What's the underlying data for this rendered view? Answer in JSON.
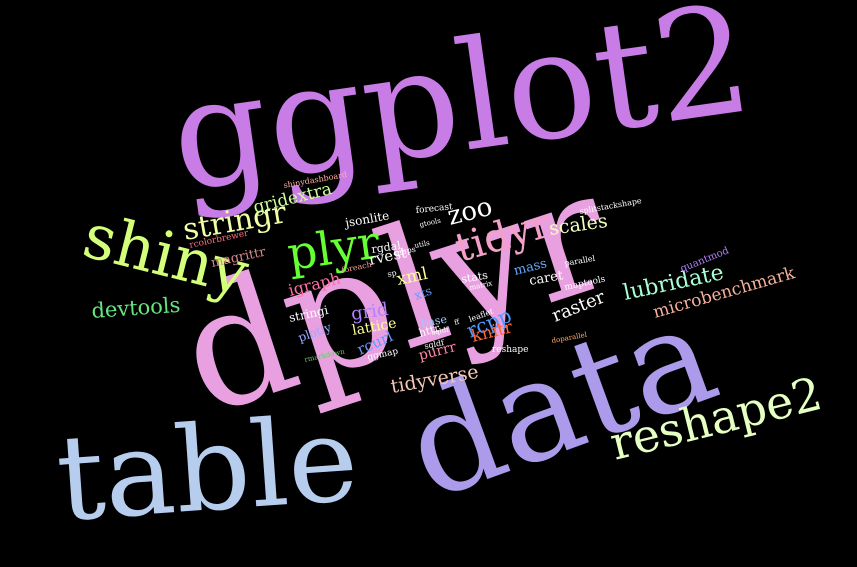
{
  "words": [
    {
      "text": "ggplot2",
      "color": "#c77ce6"
    },
    {
      "text": "dplyr",
      "color": "#e9a0e0"
    },
    {
      "text": "table",
      "color": "#b7cdee"
    },
    {
      "text": "data",
      "color": "#ab9bea"
    },
    {
      "text": "shiny",
      "color": "#d4ff7a"
    },
    {
      "text": "plyr",
      "color": "#66ff33"
    },
    {
      "text": "stringr",
      "color": "#f0ffa8"
    },
    {
      "text": "tidyr",
      "color": "#f2a0c8"
    },
    {
      "text": "reshape2",
      "color": "#e6ffc2"
    },
    {
      "text": "lubridate",
      "color": "#a8ffd6"
    },
    {
      "text": "devtools",
      "color": "#66e680"
    },
    {
      "text": "zoo",
      "color": "#ffffff"
    },
    {
      "text": "gridextra",
      "color": "#ccff99"
    },
    {
      "text": "microbenchmark",
      "color": "#f5b09a"
    },
    {
      "text": "tidyverse",
      "color": "#f5c6b5"
    },
    {
      "text": "scales",
      "color": "#f5ffc0"
    },
    {
      "text": "magrittr",
      "color": "#d98a8a"
    },
    {
      "text": "raster",
      "color": "#ffffff"
    },
    {
      "text": "rcpp",
      "color": "#4d99ff"
    },
    {
      "text": "knitr",
      "color": "#ff6633"
    },
    {
      "text": "grid",
      "color": "#b380ff"
    },
    {
      "text": "igraph",
      "color": "#ff6fa5"
    },
    {
      "text": "xml",
      "color": "#ffff99"
    },
    {
      "text": "lattice",
      "color": "#ffff99"
    },
    {
      "text": "rvest",
      "color": "#ffffff"
    },
    {
      "text": "jsonlite",
      "color": "#ffffff"
    },
    {
      "text": "caret",
      "color": "#ffffff"
    },
    {
      "text": "mass",
      "color": "#66aaff"
    },
    {
      "text": "rcurl",
      "color": "#6699ff"
    },
    {
      "text": "purrr",
      "color": "#ff88aa"
    },
    {
      "text": "stringi",
      "color": "#ffffff"
    },
    {
      "text": "plotly",
      "color": "#99aaff"
    },
    {
      "text": "xts",
      "color": "#6699ff"
    },
    {
      "text": "base",
      "color": "#99ccff"
    },
    {
      "text": "httr",
      "color": "#ffffff"
    },
    {
      "text": "stats",
      "color": "#ffffff"
    },
    {
      "text": "quantmod",
      "color": "#b380ff"
    },
    {
      "text": "maptools",
      "color": "#ffffff"
    },
    {
      "text": "reshape",
      "color": "#ffffff"
    },
    {
      "text": "forecast",
      "color": "#ffffff"
    },
    {
      "text": "rgdal",
      "color": "#ffffff"
    },
    {
      "text": "leaflet",
      "color": "#ffffff"
    },
    {
      "text": "sqldf",
      "color": "#ffffff"
    },
    {
      "text": "parallel",
      "color": "#ffffff"
    },
    {
      "text": "ggmap",
      "color": "#ffffff"
    },
    {
      "text": "rcolorbrewer",
      "color": "#ff6f80"
    },
    {
      "text": "shinydashboard",
      "color": "#ffb0a0"
    },
    {
      "text": "foreach",
      "color": "#ff9999"
    },
    {
      "text": "maps",
      "color": "#ffffff"
    },
    {
      "text": "sp",
      "color": "#ffffff"
    },
    {
      "text": "matrix",
      "color": "#ffffff"
    },
    {
      "text": "gtools",
      "color": "#ffffff"
    },
    {
      "text": "utils",
      "color": "#ffffff"
    },
    {
      "text": "splitstackshape",
      "color": "#ffffff"
    },
    {
      "text": "ff",
      "color": "#ffffff"
    },
    {
      "text": "doparallel",
      "color": "#ffaa66"
    },
    {
      "text": "rmarkdown",
      "color": "#66cc66"
    },
    {
      "text": "sqldf",
      "color": "#ffffff"
    }
  ]
}
